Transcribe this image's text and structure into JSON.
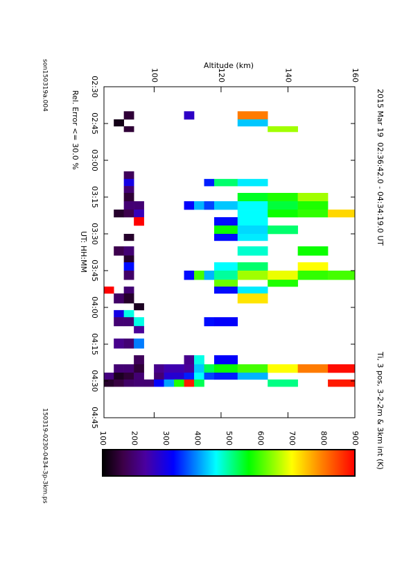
{
  "chart_data": {
    "type": "heatmap",
    "title": "2015 Mar 19",
    "subtitle": "02:36:42.0 - 04:34:19.0 UT",
    "x_label": "UT: HH:MM",
    "y_label": "Altitude (km)",
    "note": "Rel. Error <= 30.0 %",
    "file_left": "son150319a.004",
    "file_right": "150319-0230-0434-3p-3km.ps",
    "xlim": [
      150,
      285
    ],
    "xticks": [
      {
        "value": 150,
        "label": "02:30"
      },
      {
        "value": 165,
        "label": "02:45"
      },
      {
        "value": 180,
        "label": "03:00"
      },
      {
        "value": 195,
        "label": "03:15"
      },
      {
        "value": 210,
        "label": "03:30"
      },
      {
        "value": 225,
        "label": "03:45"
      },
      {
        "value": 240,
        "label": "04:00"
      },
      {
        "value": 255,
        "label": "04:15"
      },
      {
        "value": 270,
        "label": "04:30"
      },
      {
        "value": 285,
        "label": "04:45"
      }
    ],
    "ylim": [
      85,
      160
    ],
    "yticks": [
      100,
      120,
      140,
      160
    ],
    "colorbar_label": "Ti, 3 pos, 3-2-2m & 3km int (K)",
    "colorbar_lim": [
      100,
      900
    ],
    "colorbar_ticks": [
      100,
      200,
      300,
      400,
      500,
      600,
      700,
      800,
      900
    ],
    "colormap": [
      [
        0,
        "#000000"
      ],
      [
        0.08,
        "#3c0046"
      ],
      [
        0.17,
        "#4a00a0"
      ],
      [
        0.28,
        "#0000ff"
      ],
      [
        0.45,
        "#00ffff"
      ],
      [
        0.58,
        "#00ff00"
      ],
      [
        0.75,
        "#ffff00"
      ],
      [
        0.87,
        "#ff8000"
      ],
      [
        1,
        "#ff0000"
      ]
    ],
    "cells": [
      [
        160,
        163.3,
        91,
        94,
        150
      ],
      [
        160,
        163.3,
        109,
        112,
        270
      ],
      [
        160,
        163.3,
        125,
        134,
        800
      ],
      [
        163.3,
        166.1,
        88,
        91,
        120
      ],
      [
        163.3,
        166.1,
        125,
        134,
        430
      ],
      [
        166.1,
        168.4,
        91,
        94,
        150
      ],
      [
        166.1,
        168.4,
        134,
        143,
        650
      ],
      [
        184.5,
        187.6,
        91,
        94,
        180
      ],
      [
        187.6,
        190.5,
        91,
        94,
        300
      ],
      [
        187.6,
        190.5,
        115,
        118,
        340
      ],
      [
        187.6,
        190.5,
        118,
        125,
        520
      ],
      [
        187.6,
        190.5,
        125,
        134,
        450
      ],
      [
        190.5,
        193.3,
        91,
        94,
        200
      ],
      [
        193.3,
        196.7,
        91,
        94,
        150
      ],
      [
        193.3,
        196.7,
        125,
        134,
        550
      ],
      [
        193.3,
        196.7,
        134,
        143,
        580
      ],
      [
        193.3,
        196.7,
        143,
        152,
        650
      ],
      [
        196.7,
        200.1,
        91,
        94,
        200
      ],
      [
        196.7,
        200.1,
        94,
        97,
        200
      ],
      [
        196.7,
        200.1,
        109,
        112,
        320
      ],
      [
        196.7,
        200.1,
        112,
        115,
        420
      ],
      [
        196.7,
        200.1,
        115,
        118,
        360
      ],
      [
        196.7,
        200.1,
        118,
        125,
        430
      ],
      [
        196.7,
        200.1,
        125,
        134,
        460
      ],
      [
        196.7,
        200.1,
        134,
        143,
        540
      ],
      [
        196.7,
        200.1,
        143,
        152,
        580
      ],
      [
        200.1,
        203.2,
        88,
        91,
        140
      ],
      [
        200.1,
        203.2,
        91,
        94,
        170
      ],
      [
        200.1,
        203.2,
        94,
        97,
        260
      ],
      [
        200.1,
        203.2,
        125,
        134,
        460
      ],
      [
        200.1,
        203.2,
        134,
        143,
        570
      ],
      [
        200.1,
        203.2,
        143,
        152,
        590
      ],
      [
        200.1,
        203.2,
        152,
        160,
        730
      ],
      [
        203.2,
        206.6,
        94,
        97,
        900
      ],
      [
        203.2,
        206.6,
        118,
        125,
        330
      ],
      [
        203.2,
        206.6,
        125,
        134,
        460
      ],
      [
        206.6,
        210,
        118,
        125,
        570
      ],
      [
        206.6,
        210,
        125,
        134,
        440
      ],
      [
        206.6,
        210,
        134,
        143,
        520
      ],
      [
        210,
        212.8,
        91,
        94,
        140
      ],
      [
        210,
        212.8,
        118,
        125,
        330
      ],
      [
        210,
        212.8,
        125,
        134,
        450
      ],
      [
        215.1,
        218.8,
        88,
        91,
        170
      ],
      [
        215.1,
        218.8,
        91,
        94,
        200
      ],
      [
        215.1,
        218.8,
        125,
        134,
        480
      ],
      [
        215.1,
        218.8,
        143,
        152,
        570
      ],
      [
        218.8,
        221.6,
        91,
        94,
        140
      ],
      [
        221.6,
        225,
        91,
        94,
        330
      ],
      [
        221.6,
        225,
        118,
        125,
        460
      ],
      [
        221.6,
        225,
        125,
        134,
        520
      ],
      [
        221.6,
        225,
        143,
        152,
        700
      ],
      [
        225,
        228.7,
        91,
        94,
        190
      ],
      [
        225,
        228.7,
        109,
        112,
        330
      ],
      [
        225,
        228.7,
        112,
        115,
        600
      ],
      [
        225,
        228.7,
        115,
        118,
        420
      ],
      [
        225,
        228.7,
        118,
        125,
        500
      ],
      [
        225,
        228.7,
        125,
        134,
        650
      ],
      [
        225,
        228.7,
        134,
        143,
        690
      ],
      [
        225,
        228.7,
        143,
        152,
        590
      ],
      [
        225,
        228.7,
        152,
        160,
        600
      ],
      [
        228.7,
        231.5,
        118,
        125,
        620
      ],
      [
        228.7,
        231.5,
        134,
        143,
        580
      ],
      [
        231.5,
        234.3,
        85,
        88,
        900
      ],
      [
        231.5,
        234.3,
        91,
        94,
        200
      ],
      [
        231.5,
        234.3,
        118,
        125,
        330
      ],
      [
        231.5,
        234.3,
        125,
        134,
        450
      ],
      [
        234.3,
        238.3,
        88,
        91,
        190
      ],
      [
        234.3,
        238.3,
        91,
        94,
        140
      ],
      [
        234.3,
        238.3,
        125,
        134,
        720
      ],
      [
        238.3,
        241.1,
        94,
        97,
        130
      ],
      [
        241.1,
        244,
        88,
        91,
        300
      ],
      [
        241.1,
        244,
        91,
        94,
        470
      ],
      [
        244,
        247.6,
        88,
        91,
        200
      ],
      [
        244,
        247.6,
        91,
        94,
        200
      ],
      [
        244,
        247.6,
        94,
        97,
        470
      ],
      [
        244,
        247.6,
        115,
        118,
        330
      ],
      [
        244,
        247.6,
        118,
        125,
        320
      ],
      [
        247.6,
        250.5,
        94,
        97,
        230
      ],
      [
        252.7,
        256.7,
        88,
        91,
        220
      ],
      [
        252.7,
        256.7,
        91,
        94,
        200
      ],
      [
        252.7,
        256.7,
        94,
        97,
        390
      ],
      [
        259.5,
        263.2,
        94,
        97,
        180
      ],
      [
        259.5,
        263.2,
        109,
        112,
        220
      ],
      [
        259.5,
        263.2,
        112,
        115,
        470
      ],
      [
        259.5,
        263.2,
        118,
        125,
        320
      ],
      [
        263.2,
        266.6,
        88,
        91,
        200
      ],
      [
        263.2,
        266.6,
        91,
        94,
        200
      ],
      [
        263.2,
        266.6,
        94,
        97,
        150
      ],
      [
        263.2,
        266.6,
        100,
        103,
        220
      ],
      [
        263.2,
        266.6,
        103,
        109,
        250
      ],
      [
        263.2,
        266.6,
        109,
        112,
        230
      ],
      [
        263.2,
        266.6,
        112,
        115,
        430
      ],
      [
        263.2,
        266.6,
        115,
        118,
        530
      ],
      [
        263.2,
        266.6,
        118,
        125,
        570
      ],
      [
        263.2,
        266.6,
        125,
        134,
        600
      ],
      [
        263.2,
        266.6,
        134,
        143,
        700
      ],
      [
        263.2,
        266.6,
        143,
        152,
        800
      ],
      [
        263.2,
        266.6,
        152,
        160,
        890
      ],
      [
        266.6,
        269.4,
        85,
        88,
        210
      ],
      [
        266.6,
        269.4,
        88,
        91,
        130
      ],
      [
        266.6,
        269.4,
        91,
        94,
        150
      ],
      [
        266.6,
        269.4,
        94,
        97,
        200
      ],
      [
        266.6,
        269.4,
        100,
        103,
        200
      ],
      [
        266.6,
        269.4,
        103,
        109,
        280
      ],
      [
        266.6,
        269.4,
        109,
        112,
        340
      ],
      [
        266.6,
        269.4,
        112,
        115,
        460
      ],
      [
        266.6,
        269.4,
        115,
        118,
        360
      ],
      [
        266.6,
        269.4,
        118,
        125,
        340
      ],
      [
        266.6,
        269.4,
        125,
        134,
        420
      ],
      [
        269.4,
        272.3,
        85,
        88,
        140
      ],
      [
        269.4,
        272.3,
        88,
        91,
        160
      ],
      [
        269.4,
        272.3,
        91,
        94,
        190
      ],
      [
        269.4,
        272.3,
        94,
        100,
        200
      ],
      [
        269.4,
        272.3,
        100,
        103,
        320
      ],
      [
        269.4,
        272.3,
        103,
        106,
        410
      ],
      [
        269.4,
        272.3,
        106,
        109,
        580
      ],
      [
        269.4,
        272.3,
        109,
        112,
        880
      ],
      [
        269.4,
        272.3,
        112,
        115,
        530
      ],
      [
        269.4,
        272.3,
        134,
        143,
        510
      ],
      [
        269.4,
        272.3,
        152,
        160,
        880
      ]
    ]
  }
}
